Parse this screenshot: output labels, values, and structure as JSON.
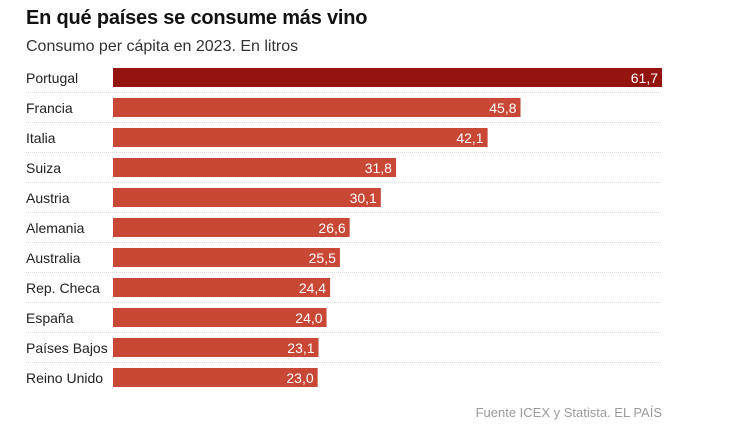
{
  "chart_data": {
    "type": "bar",
    "orientation": "horizontal",
    "title": "En qué países se consume más vino",
    "subtitle": "Consumo per cápita en 2023. En litros",
    "xlabel": "",
    "ylabel": "",
    "categories": [
      "Portugal",
      "Francia",
      "Italia",
      "Suiza",
      "Austria",
      "Alemania",
      "Australia",
      "Rep. Checa",
      "España",
      "Países Bajos",
      "Reino Unido"
    ],
    "values": [
      61.7,
      45.8,
      42.1,
      31.8,
      30.1,
      26.6,
      25.5,
      24.4,
      24.0,
      23.1,
      23.0
    ],
    "value_labels": [
      "61,7",
      "45,8",
      "42,1",
      "31,8",
      "30,1",
      "26,6",
      "25,5",
      "24,4",
      "24,0",
      "23,1",
      "23,0"
    ],
    "xlim": [
      0,
      61.7
    ],
    "grid": false,
    "highlight_index": 0,
    "colors": {
      "highlight": "#941510",
      "default": "#c94735",
      "separator": "#d9d9d9"
    },
    "source": "Fuente ICEX y Statista. EL PAÍS"
  }
}
